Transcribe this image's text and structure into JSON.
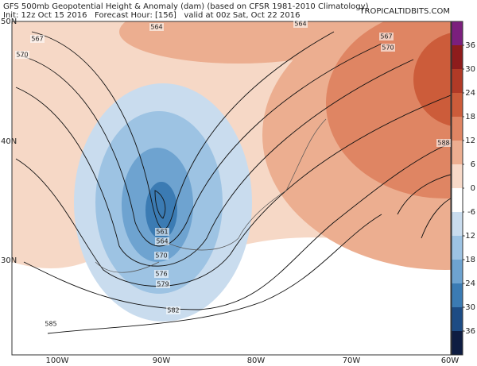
{
  "header": {
    "title": "GFS 500mb Geopotential Height & Anomaly (dam) (based on CFSR 1981-2010 Climatology)",
    "subtitle": "Init: 12z Oct 15 2016   Forecast Hour: [156]   valid at 00z Sat, Oct 22 2016",
    "site": "TROPICALTIDBITS.COM"
  },
  "map": {
    "lat_labels": [
      "50N",
      "40N",
      "30N"
    ],
    "lon_labels": [
      "100W",
      "90W",
      "80W",
      "70W",
      "60W"
    ],
    "contour_labels": [
      564,
      567,
      570,
      564,
      567,
      570,
      588,
      561,
      564,
      570,
      576,
      579,
      582,
      585
    ]
  },
  "colorbar": {
    "ticks": [
      36,
      30,
      24,
      18,
      12,
      6,
      0,
      -6,
      -12,
      -18,
      -24,
      -30,
      -36
    ],
    "colors": [
      "#7b1f7d",
      "#8e1c1c",
      "#b13a26",
      "#cc5c3a",
      "#df8563",
      "#ecae90",
      "#f7d9c8",
      "#ffffff",
      "#c9dcee",
      "#9dc3e3",
      "#6ea3d0",
      "#3b7bb3",
      "#1d4c84",
      "#0e1d42"
    ]
  }
}
